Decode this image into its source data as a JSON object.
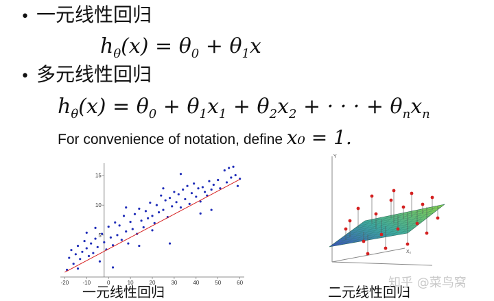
{
  "slide": {
    "bullet1": {
      "dot": "•",
      "title": "一元线性回归"
    },
    "bullet2": {
      "dot": "•",
      "title": "多元线性回归"
    },
    "note": {
      "text": "For convenience of notation, define ",
      "math": "x₀ = 1."
    },
    "caption_left": "一元线性回归",
    "caption_right": "二元线性回归",
    "watermark": "知乎 @菜鸟窝"
  },
  "formulas": {
    "f1": "hθ(x) = θ0 + θ1x",
    "f2": "hθ(x) = θ0 + θ1x1 + θ2x2 + ··· + θnxn"
  },
  "chart_data": [
    {
      "type": "scatter",
      "title": "",
      "xlabel": "",
      "ylabel": "",
      "xlim": [
        -22,
        62
      ],
      "ylim": [
        -2,
        17
      ],
      "xticks": [
        -20,
        -10,
        0,
        10,
        20,
        30,
        40,
        50,
        60
      ],
      "yticks": [
        5,
        10,
        15
      ],
      "grid": false,
      "points_color": "#1f2db8",
      "fit_line_color": "#d62020",
      "fit_line": {
        "x": [
          -20,
          60
        ],
        "y": [
          -1.2,
          14.3
        ]
      },
      "series": [
        {
          "values": [
            [
              -19,
              -0.8
            ],
            [
              -18,
              1.2
            ],
            [
              -17,
              2.5
            ],
            [
              -16,
              0.2
            ],
            [
              -15,
              1.8
            ],
            [
              -14,
              3.2
            ],
            [
              -13,
              1.0
            ],
            [
              -12,
              2.2
            ],
            [
              -11,
              4.0
            ],
            [
              -10,
              2.8
            ],
            [
              -9,
              1.5
            ],
            [
              -8,
              3.6
            ],
            [
              -7,
              2.0
            ],
            [
              -6,
              4.4
            ],
            [
              -5,
              3.0
            ],
            [
              -4,
              0.6
            ],
            [
              -3,
              5.2
            ],
            [
              -2,
              3.8
            ],
            [
              -1,
              2.6
            ],
            [
              0,
              6.4
            ],
            [
              1,
              4.6
            ],
            [
              2,
              3.3
            ],
            [
              3,
              7.1
            ],
            [
              4,
              5.0
            ],
            [
              5,
              6.6
            ],
            [
              6,
              4.2
            ],
            [
              7,
              8.2
            ],
            [
              8,
              5.6
            ],
            [
              9,
              3.6
            ],
            [
              10,
              7.2
            ],
            [
              11,
              6.0
            ],
            [
              12,
              8.5
            ],
            [
              13,
              5.2
            ],
            [
              14,
              9.4
            ],
            [
              15,
              7.4
            ],
            [
              16,
              6.3
            ],
            [
              17,
              9.0
            ],
            [
              18,
              7.8
            ],
            [
              19,
              10.4
            ],
            [
              20,
              8.2
            ],
            [
              21,
              7.0
            ],
            [
              22,
              10.0
            ],
            [
              23,
              8.8
            ],
            [
              24,
              11.6
            ],
            [
              25,
              9.2
            ],
            [
              26,
              10.8
            ],
            [
              27,
              8.0
            ],
            [
              28,
              11.2
            ],
            [
              29,
              9.8
            ],
            [
              30,
              12.2
            ],
            [
              31,
              10.5
            ],
            [
              32,
              11.8
            ],
            [
              33,
              9.6
            ],
            [
              34,
              12.6
            ],
            [
              35,
              11.0
            ],
            [
              36,
              13.2
            ],
            [
              37,
              10.2
            ],
            [
              38,
              12.0
            ],
            [
              39,
              13.6
            ],
            [
              40,
              11.4
            ],
            [
              41,
              12.8
            ],
            [
              42,
              10.6
            ],
            [
              43,
              13.0
            ],
            [
              44,
              12.2
            ],
            [
              45,
              11.6
            ],
            [
              46,
              14.0
            ],
            [
              47,
              12.6
            ],
            [
              48,
              13.4
            ],
            [
              50,
              14.2
            ],
            [
              51,
              12.8
            ],
            [
              53,
              15.8
            ],
            [
              54,
              13.8
            ],
            [
              55,
              16.2
            ],
            [
              56,
              14.6
            ],
            [
              57,
              16.4
            ],
            [
              58,
              15.0
            ],
            [
              59,
              13.2
            ],
            [
              60,
              14.4
            ],
            [
              -6,
              6.2
            ],
            [
              2,
              -0.4
            ],
            [
              8,
              9.6
            ],
            [
              20,
              5.8
            ],
            [
              28,
              3.6
            ],
            [
              33,
              15.2
            ],
            [
              42,
              8.6
            ],
            [
              -14,
              -0.6
            ],
            [
              14,
              3.2
            ],
            [
              25,
              12.8
            ],
            [
              47,
              9.2
            ],
            [
              -10,
              5.4
            ]
          ]
        }
      ]
    }
  ]
}
